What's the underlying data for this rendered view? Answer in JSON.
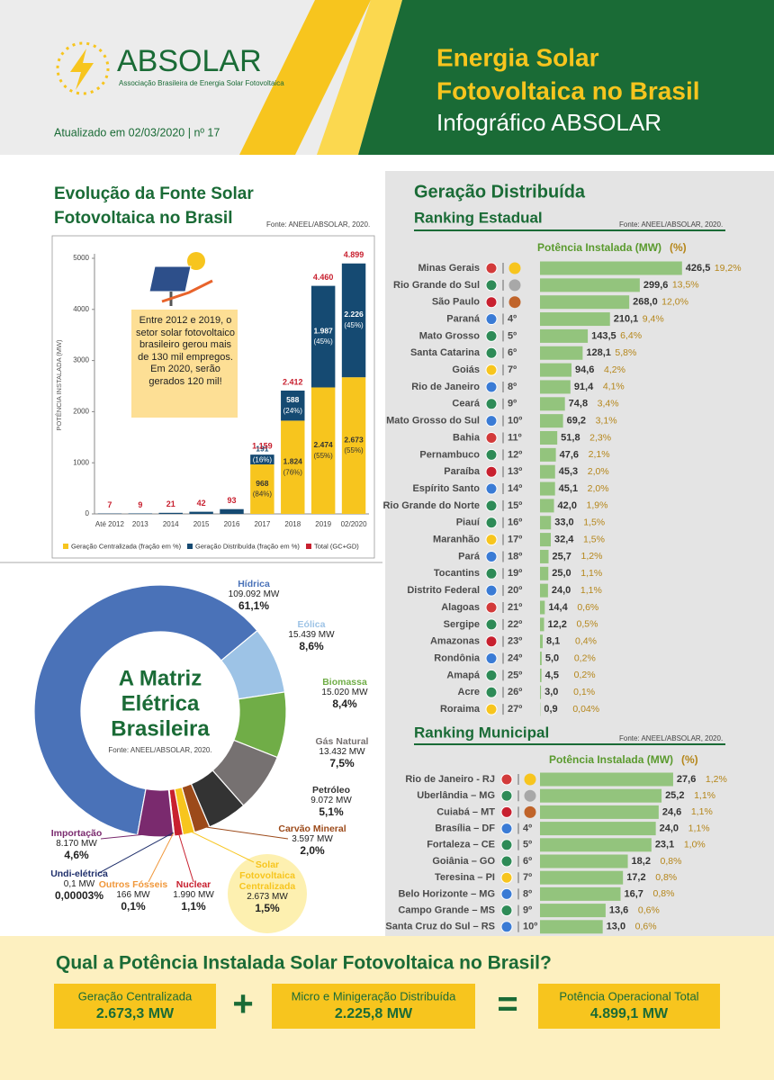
{
  "header": {
    "logo": "ABSOLAR",
    "logo_subtitle": "Associação Brasileira de Energia Solar Fotovoltaica",
    "updated": "Atualizado em 02/03/2020 | nº 17",
    "title_lines": [
      "Energia Solar",
      "Fotovoltaica no Brasil"
    ],
    "subtitle": "Infográfico ABSOLAR"
  },
  "chart_data": [
    {
      "type": "bar",
      "title_lines": [
        "Evolução da Fonte Solar",
        "Fotovoltaica no Brasil"
      ],
      "source": "Fonte: ANEEL/ABSOLAR, 2020.",
      "y_label": "POTÊNCIA INSTALADA (MW)",
      "annotation": "Entre 2012 e 2019, o setor solar fotovoltaico brasileiro gerou mais de 130 mil empregos. Em 2020, serão gerados 120 mil!",
      "categories": [
        "Até 2012",
        "2013",
        "2014",
        "2015",
        "2016",
        "2017",
        "2018",
        "2019",
        "02/2020"
      ],
      "series": [
        {
          "name": "Geração Centralizada (fração em %)",
          "color": "#f7c51e",
          "values": [
            null,
            null,
            null,
            null,
            null,
            968,
            1824,
            2474,
            2673
          ],
          "value_labels": [
            null,
            null,
            null,
            null,
            null,
            "968",
            "1.824",
            "2.474",
            "2.673"
          ],
          "share_labels": [
            null,
            null,
            null,
            null,
            null,
            "(84%)",
            "(76%)",
            "(55%)",
            "(55%)"
          ]
        },
        {
          "name": "Geração Distribuída (fração em %)",
          "color": "#154a72",
          "values": [
            null,
            null,
            null,
            null,
            null,
            191,
            588,
            1987,
            2226
          ],
          "value_labels": [
            null,
            null,
            null,
            null,
            null,
            "191",
            "588",
            "1.987",
            "2.226"
          ],
          "share_labels": [
            null,
            null,
            null,
            null,
            null,
            "(16%)",
            "(24%)",
            "(45%)",
            "(45%)"
          ]
        },
        {
          "name": "Total (GC+GD)",
          "color": "#c8202f",
          "values": [
            7,
            9,
            21,
            42,
            93,
            1159,
            2412,
            4460,
            4899
          ],
          "value_labels": [
            "7",
            "9",
            "21",
            "42",
            "93",
            "1.159",
            "2.412",
            "4.460",
            "4.899"
          ]
        }
      ],
      "ylim": [
        0,
        5000
      ],
      "yticks": [
        0,
        1000,
        2000,
        3000,
        4000,
        5000
      ]
    },
    {
      "type": "donut",
      "title_lines": [
        "A Matriz",
        "Elétrica",
        "Brasileira"
      ],
      "source": "Fonte: ANEEL/ABSOLAR, 2020.",
      "categories": [
        "Hídrica",
        "Eólica",
        "Biomassa",
        "Gás Natural",
        "Petróleo",
        "Carvão Mineral",
        "Solar Fotovoltaica Centralizada",
        "Nuclear",
        "Outros Fósseis",
        "Undi-elétrica",
        "Importação"
      ],
      "capacity_labels": [
        "109.092 MW",
        "15.439 MW",
        "15.020 MW",
        "13.432 MW",
        "9.072 MW",
        "3.597 MW",
        "2.673 MW",
        "1.990 MW",
        "166 MW",
        "0,1 MW",
        "8.170 MW"
      ],
      "values": [
        61.1,
        8.6,
        8.4,
        7.5,
        5.1,
        2.0,
        1.5,
        1.1,
        0.1,
        3e-05,
        4.6
      ],
      "value_labels": [
        "61,1%",
        "8,6%",
        "8,4%",
        "7,5%",
        "5,1%",
        "2,0%",
        "1,5%",
        "1,1%",
        "0,1%",
        "0,00003%",
        "4,6%"
      ],
      "colors": [
        "#4a72b8",
        "#9dc3e6",
        "#70ad47",
        "#767171",
        "#333333",
        "#9c4a1a",
        "#f7c51e",
        "#c8202f",
        "#f0973a",
        "#1f2f6b",
        "#7a2a6e"
      ]
    },
    {
      "type": "hbar",
      "title": "Geração Distribuída",
      "subtitle": "Ranking Estadual",
      "source": "Fonte: ANEEL/ABSOLAR, 2020.",
      "share_header": "(%)",
      "categories": [
        "Minas Gerais",
        "Rio Grande do Sul",
        "São Paulo",
        "Paraná",
        "Mato Grosso",
        "Santa Catarina",
        "Goiás",
        "Rio de Janeiro",
        "Ceará",
        "Mato Grosso do Sul",
        "Bahia",
        "Pernambuco",
        "Paraíba",
        "Espírito Santo",
        "Rio Grande do Norte",
        "Piauí",
        "Maranhão",
        "Pará",
        "Tocantins",
        "Distrito Federal",
        "Alagoas",
        "Sergipe",
        "Amazonas",
        "Rondônia",
        "Amapá",
        "Acre",
        "Roraima"
      ],
      "ranks": [
        null,
        null,
        null,
        "4º",
        "5º",
        "6º",
        "7º",
        "8º",
        "9º",
        "10º",
        "11º",
        "12º",
        "13º",
        "14º",
        "15º",
        "16º",
        "17º",
        "18º",
        "19º",
        "20º",
        "21º",
        "22º",
        "23º",
        "24º",
        "25º",
        "26º",
        "27º"
      ],
      "series": [
        {
          "name": "Potência Instalada (MW)",
          "color": "#93c47d",
          "values": [
            426.5,
            299.6,
            268.0,
            210.1,
            143.5,
            128.1,
            94.6,
            91.4,
            74.8,
            69.2,
            51.8,
            47.6,
            45.3,
            45.1,
            42.0,
            33.0,
            32.4,
            25.7,
            25.0,
            24.0,
            14.4,
            12.2,
            8.1,
            5.0,
            4.5,
            3.0,
            0.9
          ],
          "value_labels": [
            "426,5",
            "299,6",
            "268,0",
            "210,1",
            "143,5",
            "128,1",
            "94,6",
            "91,4",
            "74,8",
            "69,2",
            "51,8",
            "47,6",
            "45,3",
            "45,1",
            "42,0",
            "33,0",
            "32,4",
            "25,7",
            "25,0",
            "24,0",
            "14,4",
            "12,2",
            "8,1",
            "5,0",
            "4,5",
            "3,0",
            "0,9"
          ]
        }
      ],
      "share_labels": [
        "19,2%",
        "13,5%",
        "12,0%",
        "9,4%",
        "6,4%",
        "5,8%",
        "4,2%",
        "4,1%",
        "3,4%",
        "3,1%",
        "2,3%",
        "2,1%",
        "2,0%",
        "2,0%",
        "1,9%",
        "1,5%",
        "1,5%",
        "1,2%",
        "1,1%",
        "1,1%",
        "0,6%",
        "0,5%",
        "0,4%",
        "0,2%",
        "0,2%",
        "0,1%",
        "0,04%"
      ]
    },
    {
      "type": "hbar",
      "title": "Ranking Municipal",
      "source": "Fonte: ANEEL/ABSOLAR, 2020.",
      "share_header": "(%)",
      "categories": [
        "Rio de Janeiro - RJ",
        "Uberlândia – MG",
        "Cuiabá – MT",
        "Brasília – DF",
        "Fortaleza – CE",
        "Goiânia – GO",
        "Teresina – PI",
        "Belo Horizonte – MG",
        "Campo Grande – MS",
        "Santa Cruz do Sul – RS"
      ],
      "ranks": [
        null,
        null,
        null,
        "4º",
        "5º",
        "6º",
        "7º",
        "8º",
        "9º",
        "10º"
      ],
      "series": [
        {
          "name": "Potência Instalada (MW)",
          "color": "#93c47d",
          "values": [
            27.6,
            25.2,
            24.6,
            24.0,
            23.1,
            18.2,
            17.2,
            16.7,
            13.6,
            13.0
          ],
          "value_labels": [
            "27,6",
            "25,2",
            "24,6",
            "24,0",
            "23,1",
            "18,2",
            "17,2",
            "16,7",
            "13,6",
            "13,0"
          ]
        }
      ],
      "share_labels": [
        "1,2%",
        "1,1%",
        "1,1%",
        "1,1%",
        "1,0%",
        "0,8%",
        "0,8%",
        "0,8%",
        "0,6%",
        "0,6%"
      ]
    }
  ],
  "footer": {
    "title": "Qual a Potência Instalada Solar Fotovoltaica no Brasil?",
    "items": [
      {
        "label": "Geração Centralizada",
        "value": "2.673,3 MW"
      },
      {
        "label": "Micro e Minigeração Distribuída",
        "value": "2.225,8 MW"
      },
      {
        "label": "Potência Operacional Total",
        "value": "4.899,1 MW"
      }
    ],
    "operators": [
      "+",
      "="
    ]
  }
}
